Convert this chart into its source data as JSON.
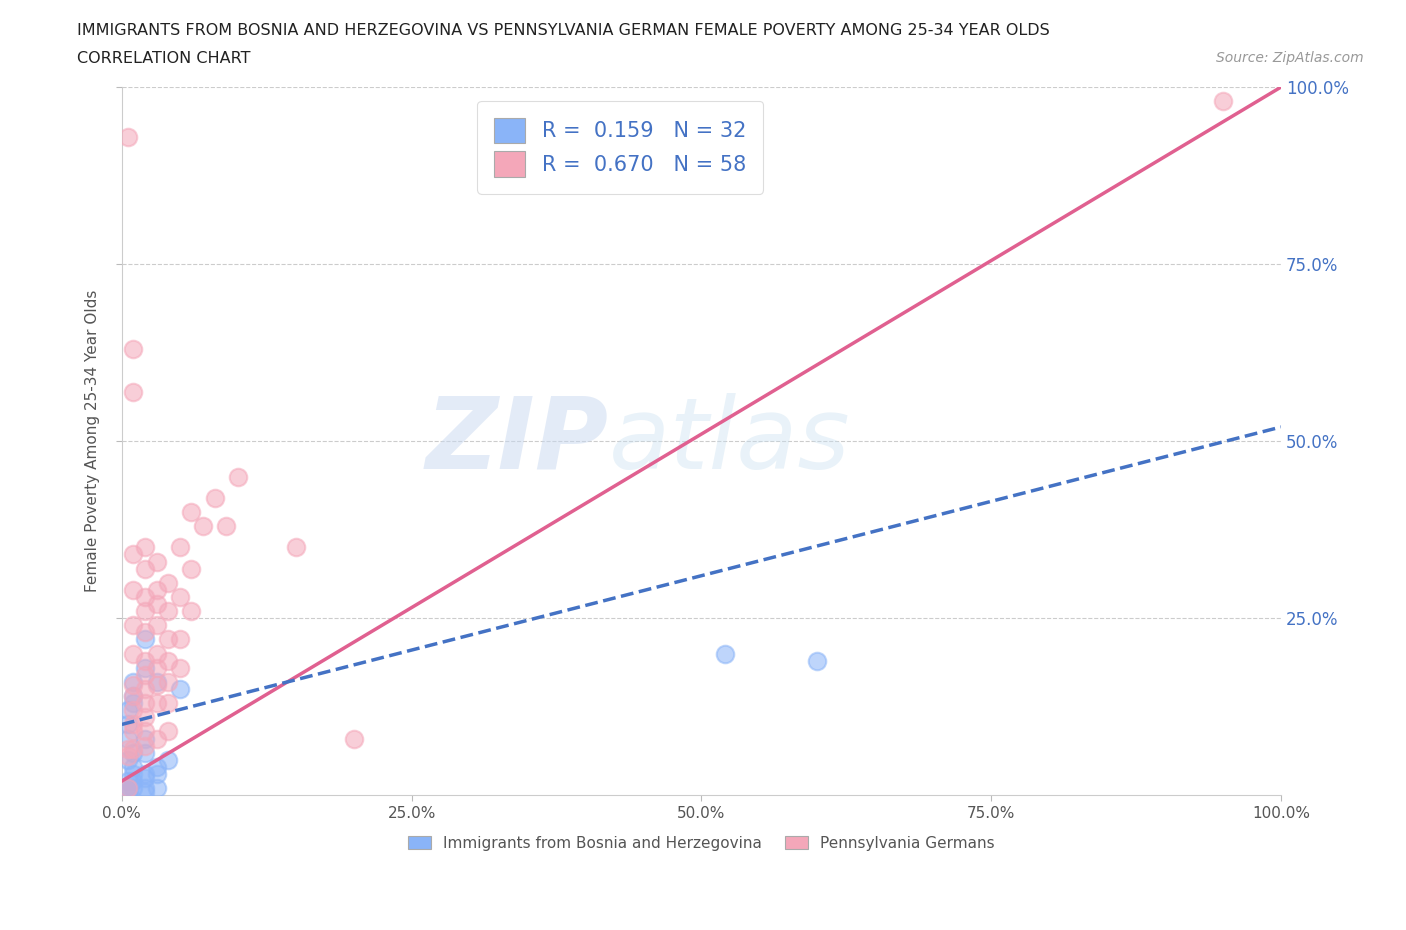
{
  "title_line1": "IMMIGRANTS FROM BOSNIA AND HERZEGOVINA VS PENNSYLVANIA GERMAN FEMALE POVERTY AMONG 25-34 YEAR OLDS",
  "title_line2": "CORRELATION CHART",
  "source_text": "Source: ZipAtlas.com",
  "ylabel": "Female Poverty Among 25-34 Year Olds",
  "xlim": [
    0.0,
    1.0
  ],
  "ylim": [
    0.0,
    1.0
  ],
  "xtick_labels": [
    "0.0%",
    "25.0%",
    "50.0%",
    "75.0%",
    "100.0%"
  ],
  "xtick_positions": [
    0.0,
    0.25,
    0.5,
    0.75,
    1.0
  ],
  "ytick_labels": [
    "25.0%",
    "50.0%",
    "75.0%",
    "100.0%"
  ],
  "ytick_positions": [
    0.25,
    0.5,
    0.75,
    1.0
  ],
  "legend_label_blue": "R =  0.159   N = 32",
  "legend_label_pink": "R =  0.670   N = 58",
  "watermark_zip": "ZIP",
  "watermark_atlas": "atlas",
  "blue_color": "#8ab4f8",
  "pink_color": "#f4a7b9",
  "blue_line_color": "#4472c4",
  "pink_line_color": "#e06090",
  "legend_R_N_color": "#4472c4",
  "background_color": "#ffffff",
  "blue_scatter": [
    [
      0.005,
      0.05
    ],
    [
      0.005,
      0.08
    ],
    [
      0.005,
      0.1
    ],
    [
      0.005,
      0.12
    ],
    [
      0.005,
      0.02
    ],
    [
      0.005,
      0.01
    ],
    [
      0.005,
      0.005
    ],
    [
      0.005,
      0.005
    ],
    [
      0.01,
      0.14
    ],
    [
      0.01,
      0.16
    ],
    [
      0.01,
      0.13
    ],
    [
      0.01,
      0.06
    ],
    [
      0.01,
      0.04
    ],
    [
      0.01,
      0.03
    ],
    [
      0.01,
      0.02
    ],
    [
      0.01,
      0.01
    ],
    [
      0.02,
      0.22
    ],
    [
      0.02,
      0.18
    ],
    [
      0.02,
      0.08
    ],
    [
      0.02,
      0.06
    ],
    [
      0.02,
      0.03
    ],
    [
      0.02,
      0.025
    ],
    [
      0.02,
      0.01
    ],
    [
      0.02,
      0.005
    ],
    [
      0.03,
      0.16
    ],
    [
      0.03,
      0.04
    ],
    [
      0.03,
      0.03
    ],
    [
      0.03,
      0.01
    ],
    [
      0.04,
      0.05
    ],
    [
      0.05,
      0.15
    ],
    [
      0.52,
      0.2
    ],
    [
      0.6,
      0.19
    ]
  ],
  "pink_scatter": [
    [
      0.005,
      0.93
    ],
    [
      0.005,
      0.065
    ],
    [
      0.005,
      0.055
    ],
    [
      0.005,
      0.01
    ],
    [
      0.01,
      0.63
    ],
    [
      0.01,
      0.57
    ],
    [
      0.01,
      0.34
    ],
    [
      0.01,
      0.29
    ],
    [
      0.01,
      0.24
    ],
    [
      0.01,
      0.2
    ],
    [
      0.01,
      0.155
    ],
    [
      0.01,
      0.14
    ],
    [
      0.01,
      0.12
    ],
    [
      0.01,
      0.1
    ],
    [
      0.01,
      0.09
    ],
    [
      0.01,
      0.065
    ],
    [
      0.02,
      0.35
    ],
    [
      0.02,
      0.32
    ],
    [
      0.02,
      0.28
    ],
    [
      0.02,
      0.26
    ],
    [
      0.02,
      0.23
    ],
    [
      0.02,
      0.19
    ],
    [
      0.02,
      0.17
    ],
    [
      0.02,
      0.15
    ],
    [
      0.02,
      0.13
    ],
    [
      0.02,
      0.11
    ],
    [
      0.02,
      0.09
    ],
    [
      0.02,
      0.07
    ],
    [
      0.03,
      0.33
    ],
    [
      0.03,
      0.29
    ],
    [
      0.03,
      0.27
    ],
    [
      0.03,
      0.24
    ],
    [
      0.03,
      0.2
    ],
    [
      0.03,
      0.18
    ],
    [
      0.03,
      0.155
    ],
    [
      0.03,
      0.13
    ],
    [
      0.03,
      0.08
    ],
    [
      0.04,
      0.3
    ],
    [
      0.04,
      0.26
    ],
    [
      0.04,
      0.22
    ],
    [
      0.04,
      0.19
    ],
    [
      0.04,
      0.16
    ],
    [
      0.04,
      0.13
    ],
    [
      0.04,
      0.09
    ],
    [
      0.05,
      0.35
    ],
    [
      0.05,
      0.28
    ],
    [
      0.05,
      0.22
    ],
    [
      0.05,
      0.18
    ],
    [
      0.06,
      0.4
    ],
    [
      0.06,
      0.32
    ],
    [
      0.06,
      0.26
    ],
    [
      0.07,
      0.38
    ],
    [
      0.08,
      0.42
    ],
    [
      0.09,
      0.38
    ],
    [
      0.1,
      0.45
    ],
    [
      0.15,
      0.35
    ],
    [
      0.2,
      0.08
    ],
    [
      0.95,
      0.98
    ]
  ]
}
